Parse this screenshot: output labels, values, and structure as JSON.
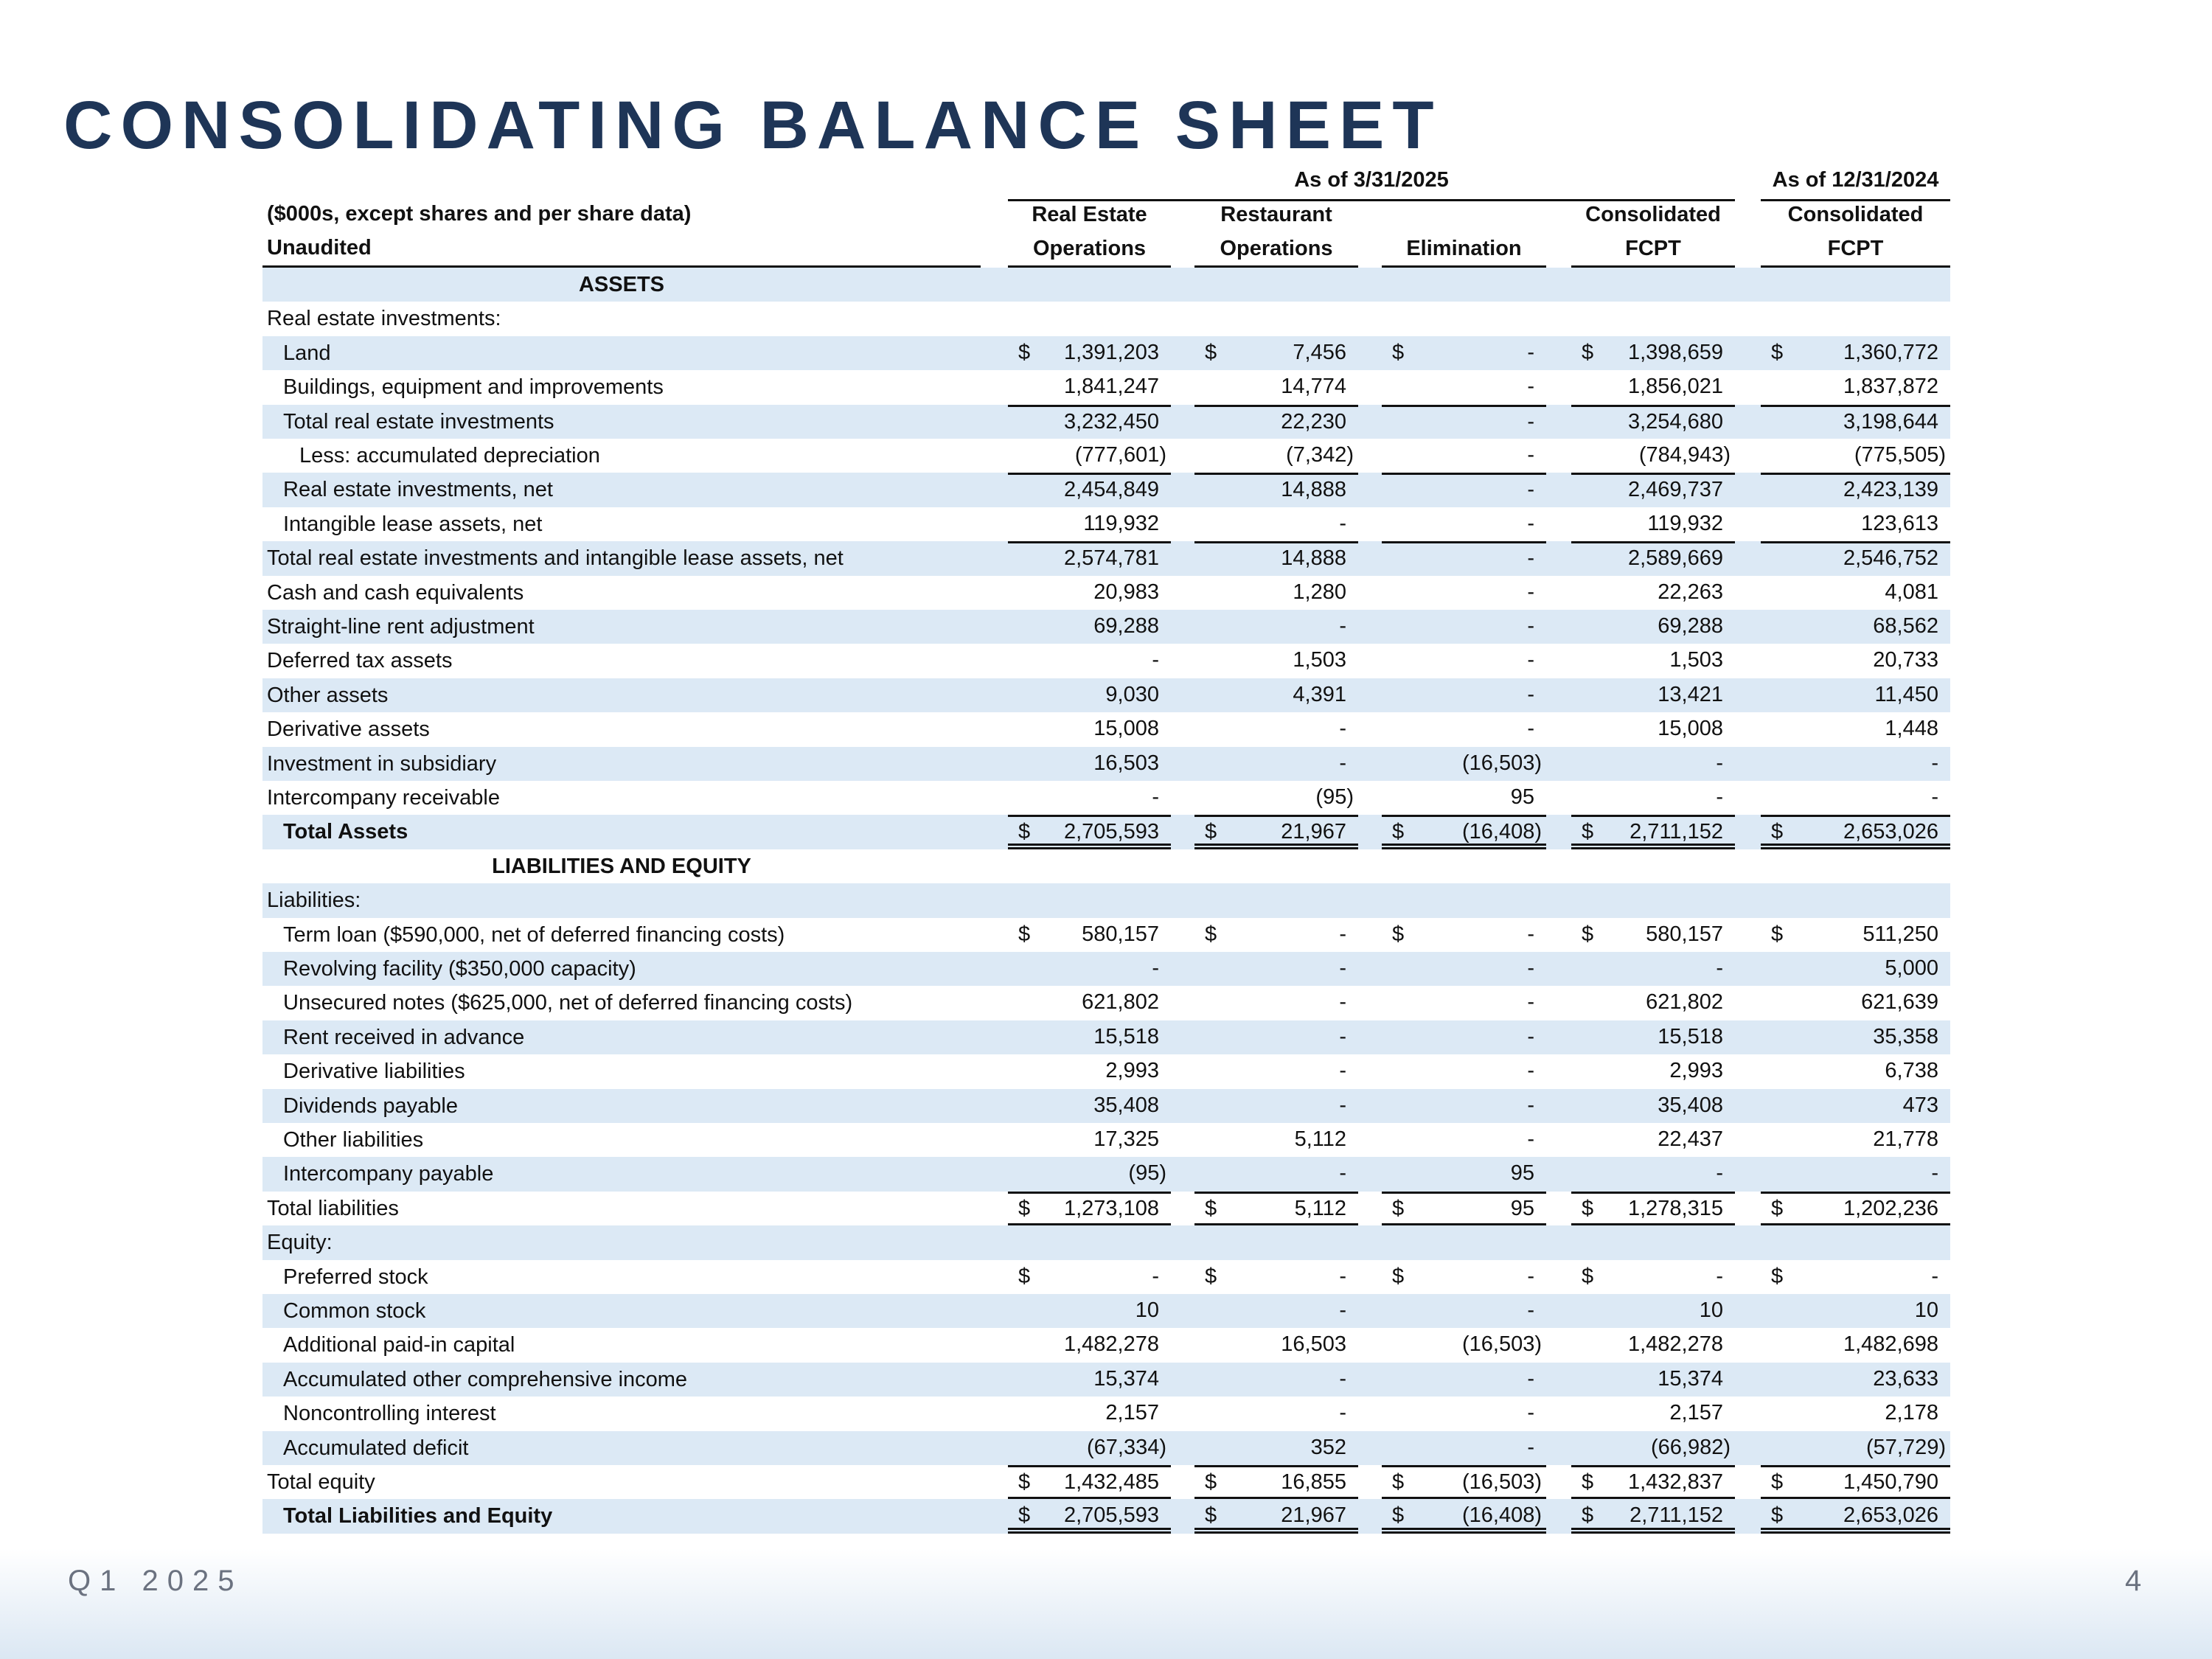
{
  "title": "CONSOLIDATING BALANCE SHEET",
  "header": {
    "period_current": "As of 3/31/2025",
    "period_prior": "As of 12/31/2024",
    "note_line1": "($000s, except shares and per share data)",
    "note_line2": "Unaudited",
    "columns": [
      {
        "line1": "Real Estate",
        "line2": "Operations"
      },
      {
        "line1": "Restaurant",
        "line2": "Operations"
      },
      {
        "line1": "",
        "line2": "Elimination"
      },
      {
        "line1": "Consolidated",
        "line2": "FCPT"
      },
      {
        "line1": "Consolidated",
        "line2": "FCPT"
      }
    ]
  },
  "colors": {
    "title": "#1e3557",
    "row_shade": "#dce9f5"
  },
  "rows": [
    {
      "label": "ASSETS",
      "section": true,
      "bold": true,
      "values": []
    },
    {
      "label": "Real estate investments:",
      "indent": 0,
      "values": []
    },
    {
      "label": "Land",
      "indent": 1,
      "dollar": true,
      "values": [
        "1,391,203",
        "7,456",
        "-",
        "1,398,659",
        "1,360,772"
      ]
    },
    {
      "label": "Buildings, equipment and improvements",
      "indent": 1,
      "values": [
        "1,841,247",
        "14,774",
        "-",
        "1,856,021",
        "1,837,872"
      ]
    },
    {
      "label": "Total real estate investments",
      "indent": 1,
      "rule_above": true,
      "values": [
        "3,232,450",
        "22,230",
        "-",
        "3,254,680",
        "3,198,644"
      ]
    },
    {
      "label": "Less: accumulated depreciation",
      "indent": 2,
      "values": [
        "(777,601)",
        "(7,342)",
        "-",
        "(784,943)",
        "(775,505)"
      ]
    },
    {
      "label": "Real estate investments, net",
      "indent": 1,
      "rule_above": true,
      "values": [
        "2,454,849",
        "14,888",
        "-",
        "2,469,737",
        "2,423,139"
      ]
    },
    {
      "label": "Intangible lease assets, net",
      "indent": 1,
      "values": [
        "119,932",
        "-",
        "-",
        "119,932",
        "123,613"
      ]
    },
    {
      "label": "Total real estate investments and intangible lease assets, net",
      "indent": 0,
      "rule_above": true,
      "values": [
        "2,574,781",
        "14,888",
        "-",
        "2,589,669",
        "2,546,752"
      ]
    },
    {
      "label": "Cash and cash equivalents",
      "indent": 0,
      "values": [
        "20,983",
        "1,280",
        "-",
        "22,263",
        "4,081"
      ]
    },
    {
      "label": "Straight-line rent adjustment",
      "indent": 0,
      "values": [
        "69,288",
        "-",
        "-",
        "69,288",
        "68,562"
      ]
    },
    {
      "label": "Deferred tax assets",
      "indent": 0,
      "values": [
        "-",
        "1,503",
        "-",
        "1,503",
        "20,733"
      ]
    },
    {
      "label": "Other assets",
      "indent": 0,
      "values": [
        "9,030",
        "4,391",
        "-",
        "13,421",
        "11,450"
      ]
    },
    {
      "label": "Derivative assets",
      "indent": 0,
      "values": [
        "15,008",
        "-",
        "-",
        "15,008",
        "1,448"
      ]
    },
    {
      "label": "Investment in subsidiary",
      "indent": 0,
      "values": [
        "16,503",
        "-",
        "(16,503)",
        "-",
        "-"
      ]
    },
    {
      "label": "Intercompany receivable",
      "indent": 0,
      "values": [
        "-",
        "(95)",
        "95",
        "-",
        "-"
      ]
    },
    {
      "label": "Total Assets",
      "indent": 1,
      "bold": true,
      "dollar": true,
      "rule_above": true,
      "rule_below": "double",
      "values": [
        "2,705,593",
        "21,967",
        "(16,408)",
        "2,711,152",
        "2,653,026"
      ]
    },
    {
      "label": "LIABILITIES AND EQUITY",
      "section": true,
      "bold": true,
      "values": []
    },
    {
      "label": "Liabilities:",
      "indent": 0,
      "values": []
    },
    {
      "label": "Term loan ($590,000, net of deferred financing costs)",
      "indent": 1,
      "dollar": true,
      "values": [
        "580,157",
        "-",
        "-",
        "580,157",
        "511,250"
      ]
    },
    {
      "label": "Revolving facility ($350,000 capacity)",
      "indent": 1,
      "values": [
        "-",
        "-",
        "-",
        "-",
        "5,000"
      ]
    },
    {
      "label": "Unsecured notes ($625,000, net of deferred financing costs)",
      "indent": 1,
      "values": [
        "621,802",
        "-",
        "-",
        "621,802",
        "621,639"
      ]
    },
    {
      "label": "Rent received in advance",
      "indent": 1,
      "values": [
        "15,518",
        "-",
        "-",
        "15,518",
        "35,358"
      ]
    },
    {
      "label": "Derivative liabilities",
      "indent": 1,
      "values": [
        "2,993",
        "-",
        "-",
        "2,993",
        "6,738"
      ]
    },
    {
      "label": "Dividends payable",
      "indent": 1,
      "values": [
        "35,408",
        "-",
        "-",
        "35,408",
        "473"
      ]
    },
    {
      "label": "Other liabilities",
      "indent": 1,
      "values": [
        "17,325",
        "5,112",
        "-",
        "22,437",
        "21,778"
      ]
    },
    {
      "label": "Intercompany payable",
      "indent": 1,
      "values": [
        "(95)",
        "-",
        "95",
        "-",
        "-"
      ]
    },
    {
      "label": "Total liabilities",
      "indent": 0,
      "dollar": true,
      "rule_above": true,
      "rule_below": "single",
      "values": [
        "1,273,108",
        "5,112",
        "95",
        "1,278,315",
        "1,202,236"
      ]
    },
    {
      "label": "Equity:",
      "indent": 0,
      "values": []
    },
    {
      "label": "Preferred stock",
      "indent": 1,
      "dollar": true,
      "values": [
        "-",
        "-",
        "-",
        "-",
        "-"
      ]
    },
    {
      "label": "Common stock",
      "indent": 1,
      "values": [
        "10",
        "-",
        "-",
        "10",
        "10"
      ]
    },
    {
      "label": "Additional paid-in capital",
      "indent": 1,
      "values": [
        "1,482,278",
        "16,503",
        "(16,503)",
        "1,482,278",
        "1,482,698"
      ]
    },
    {
      "label": "Accumulated other comprehensive income",
      "indent": 1,
      "values": [
        "15,374",
        "-",
        "-",
        "15,374",
        "23,633"
      ]
    },
    {
      "label": "Noncontrolling interest",
      "indent": 1,
      "values": [
        "2,157",
        "-",
        "-",
        "2,157",
        "2,178"
      ]
    },
    {
      "label": "Accumulated deficit",
      "indent": 1,
      "values": [
        "(67,334)",
        "352",
        "-",
        "(66,982)",
        "(57,729)"
      ]
    },
    {
      "label": "Total equity",
      "indent": 0,
      "dollar": true,
      "rule_above": true,
      "rule_below": "single",
      "values": [
        "1,432,485",
        "16,855",
        "(16,503)",
        "1,432,837",
        "1,450,790"
      ]
    },
    {
      "label": "Total Liabilities and Equity",
      "indent": 1,
      "bold": true,
      "dollar": true,
      "rule_below": "double",
      "values": [
        "2,705,593",
        "21,967",
        "(16,408)",
        "2,711,152",
        "2,653,026"
      ]
    }
  ],
  "footer": {
    "period": "Q1 2025",
    "page_number": "4"
  }
}
